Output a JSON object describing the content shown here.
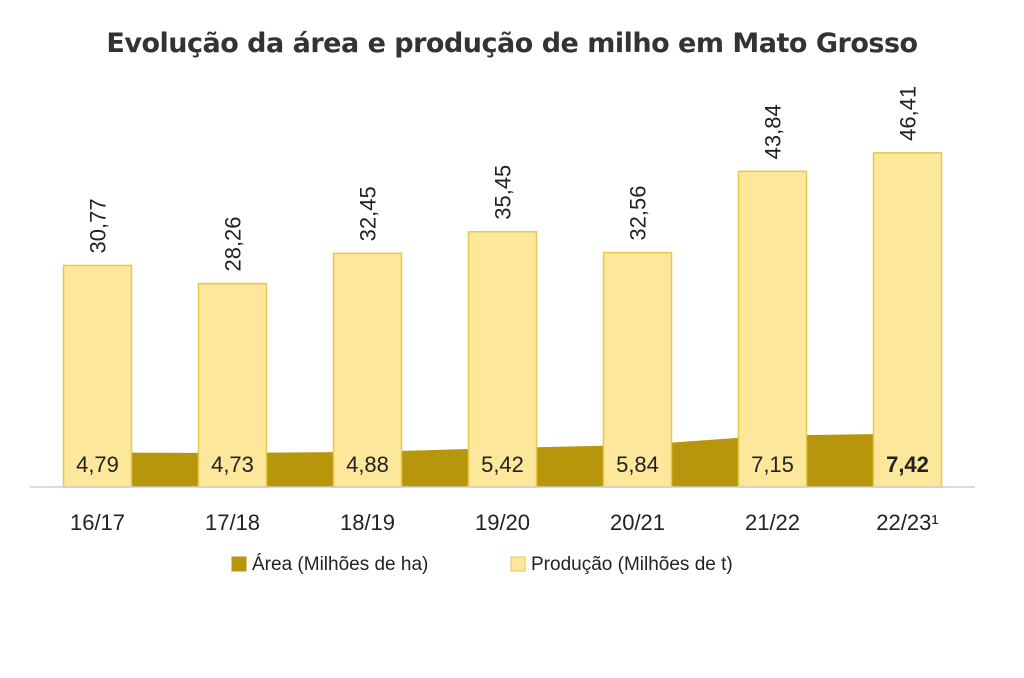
{
  "chart_data": {
    "type": "bar",
    "title": "Evolução da área e produção de milho em Mato Grosso",
    "categories": [
      "16/17",
      "17/18",
      "18/19",
      "19/20",
      "20/21",
      "21/22",
      "22/23¹"
    ],
    "series": [
      {
        "name": "Área (Milhões de ha)",
        "chart_type": "area",
        "color": "#b8960c",
        "values": [
          4.79,
          4.73,
          4.88,
          5.42,
          5.84,
          7.15,
          7.42
        ],
        "labels": [
          "4,79",
          "4,73",
          "4,88",
          "5,42",
          "5,84",
          "7,15",
          "7,42"
        ]
      },
      {
        "name": "Produção (Milhões de t)",
        "chart_type": "bar",
        "color": "#fde79a",
        "border_color": "#e8c84a",
        "values": [
          30.77,
          28.26,
          32.45,
          35.45,
          32.56,
          43.84,
          46.41
        ],
        "labels": [
          "30,77",
          "28,26",
          "32,45",
          "35,45",
          "32,56",
          "43,84",
          "46,41"
        ]
      }
    ],
    "ylim": [
      0,
      50
    ],
    "grid": false,
    "legend_position": "bottom"
  }
}
